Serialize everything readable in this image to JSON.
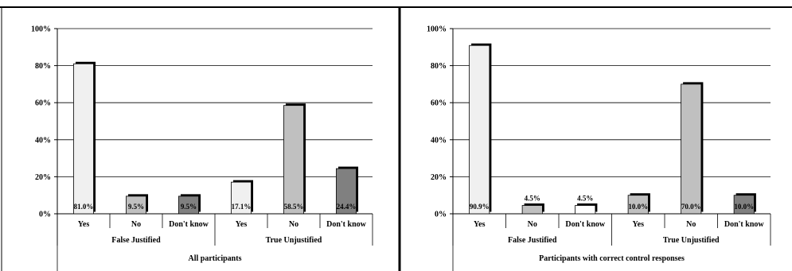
{
  "chart_data": [
    {
      "type": "bar",
      "ylim": [
        0,
        100
      ],
      "ytick_labels": [
        "0%",
        "20%",
        "40%",
        "60%",
        "80%",
        "100%"
      ],
      "categories": [
        "Yes",
        "No",
        "Don't know",
        "Yes",
        "No",
        "Don't know"
      ],
      "groups": [
        "False Justified",
        "True Unjustified"
      ],
      "xlabel": "All participants",
      "values": [
        81.0,
        9.5,
        9.5,
        17.1,
        58.5,
        24.4
      ],
      "data_labels": [
        "81.0%",
        "9.5%",
        "9.5%",
        "17.1%",
        "58.5%",
        "24.4%"
      ],
      "label_position": [
        "inside",
        "inside",
        "inside",
        "inside",
        "inside",
        "inside"
      ],
      "bar_colors": [
        "#f0f0f0",
        "#c0c0c0",
        "#808080",
        "#f0f0f0",
        "#c0c0c0",
        "#808080"
      ],
      "grid": true
    },
    {
      "type": "bar",
      "ylim": [
        0,
        100
      ],
      "ytick_labels": [
        "0%",
        "20%",
        "40%",
        "60%",
        "80%",
        "100%"
      ],
      "categories": [
        "Yes",
        "No",
        "Don't know",
        "Yes",
        "No",
        "Don't know"
      ],
      "groups": [
        "False Justified",
        "True Unjustified"
      ],
      "xlabel": "Participants with correct control responses",
      "values": [
        90.9,
        4.5,
        4.5,
        10.0,
        70.0,
        10.0
      ],
      "data_labels": [
        "90.9%",
        "4.5%",
        "4.5%",
        "10.0%",
        "70.0%",
        "10.0%"
      ],
      "label_position": [
        "inside",
        "above",
        "above",
        "inside",
        "inside",
        "inside"
      ],
      "bar_colors": [
        "#f0f0f0",
        "#c0c0c0",
        "#ffffff",
        "#c0c0c0",
        "#c0c0c0",
        "#808080"
      ],
      "grid": true
    }
  ]
}
